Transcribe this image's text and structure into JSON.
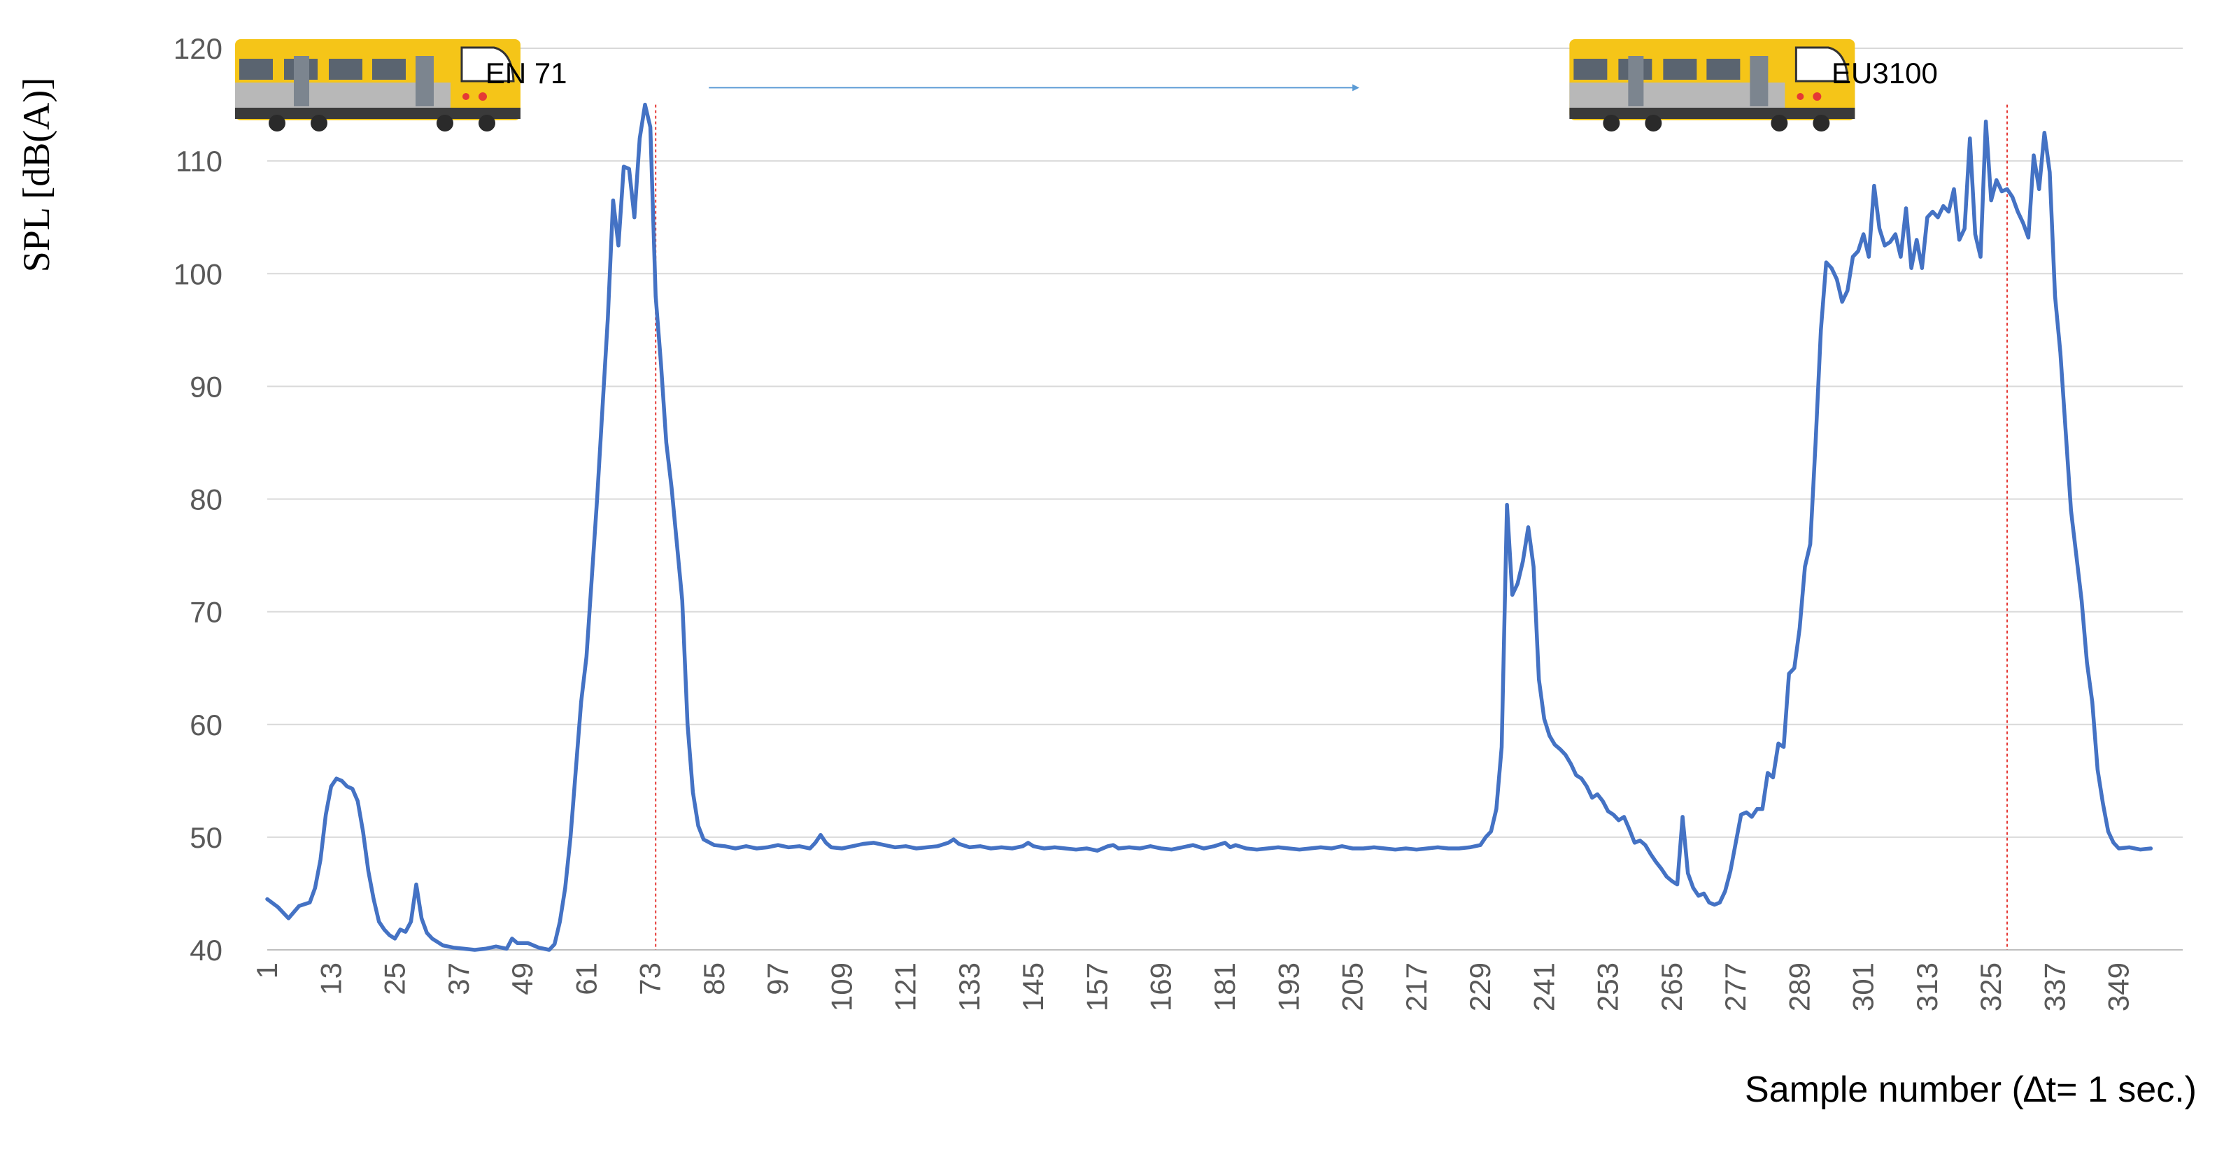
{
  "chart_data": {
    "type": "line",
    "title": "",
    "xlabel": "Sample number (∆t= 1 sec.)",
    "ylabel": "SPL [dB(A)]",
    "ylim": [
      40,
      120
    ],
    "yticks": [
      40,
      50,
      60,
      70,
      80,
      90,
      100,
      110,
      120
    ],
    "xlim": [
      1,
      361
    ],
    "xtick_labels": [
      "1",
      "13",
      "25",
      "37",
      "49",
      "61",
      "73",
      "85",
      "97",
      "109",
      "121",
      "133",
      "145",
      "157",
      "169",
      "181",
      "193",
      "205",
      "217",
      "229",
      "241",
      "253",
      "265",
      "277",
      "289",
      "301",
      "313",
      "325",
      "337",
      "349"
    ],
    "grid": "horizontal",
    "line_color": "#4472C4",
    "marker_color": "#E53935",
    "arrow_color": "#5B9BD5",
    "train_colors": {
      "body": "#F5C518",
      "band": "#B8B8B8",
      "window": "#5A6470"
    },
    "markers": [
      {
        "x": 74,
        "label": "EN 71",
        "icon": "train-icon"
      },
      {
        "x": 328,
        "label": "EU3100",
        "icon": "train-icon"
      }
    ],
    "arrow": {
      "from_x": 84,
      "to_x": 206,
      "y": 116.5
    },
    "series": [
      {
        "points": [
          [
            1,
            44.5
          ],
          [
            3,
            43.8
          ],
          [
            5,
            42.8
          ],
          [
            7,
            43.9
          ],
          [
            9,
            44.2
          ],
          [
            10,
            45.5
          ],
          [
            11,
            48
          ],
          [
            12,
            52
          ],
          [
            13,
            54.5
          ],
          [
            14,
            55.2
          ],
          [
            15,
            55
          ],
          [
            16,
            54.5
          ],
          [
            17,
            54.3
          ],
          [
            18,
            53.2
          ],
          [
            19,
            50.5
          ],
          [
            20,
            47
          ],
          [
            21,
            44.5
          ],
          [
            22,
            42.5
          ],
          [
            23,
            41.8
          ],
          [
            24,
            41.3
          ],
          [
            25,
            41
          ],
          [
            26,
            41.8
          ],
          [
            27,
            41.6
          ],
          [
            28,
            42.5
          ],
          [
            29,
            45.8
          ],
          [
            30,
            42.8
          ],
          [
            31,
            41.5
          ],
          [
            32,
            41
          ],
          [
            34,
            40.4
          ],
          [
            36,
            40.2
          ],
          [
            38,
            40.1
          ],
          [
            40,
            40.0
          ],
          [
            42,
            40.1
          ],
          [
            44,
            40.3
          ],
          [
            46,
            40.1
          ],
          [
            47,
            41
          ],
          [
            48,
            40.6
          ],
          [
            50,
            40.6
          ],
          [
            52,
            40.2
          ],
          [
            54,
            40.0
          ],
          [
            55,
            40.5
          ],
          [
            56,
            42.5
          ],
          [
            57,
            45.5
          ],
          [
            58,
            50
          ],
          [
            59,
            56
          ],
          [
            60,
            62
          ],
          [
            61,
            66
          ],
          [
            62,
            73
          ],
          [
            63,
            80
          ],
          [
            64,
            88
          ],
          [
            65,
            96
          ],
          [
            66,
            106.5
          ],
          [
            67,
            102.5
          ],
          [
            68,
            109.5
          ],
          [
            69,
            109.3
          ],
          [
            70,
            105
          ],
          [
            71,
            112
          ],
          [
            72,
            115
          ],
          [
            73,
            113
          ],
          [
            74,
            98
          ],
          [
            75,
            92
          ],
          [
            76,
            85
          ],
          [
            77,
            81
          ],
          [
            78,
            76
          ],
          [
            79,
            71
          ],
          [
            80,
            60
          ],
          [
            81,
            54
          ],
          [
            82,
            51
          ],
          [
            83,
            49.8
          ],
          [
            85,
            49.3
          ],
          [
            87,
            49.2
          ],
          [
            89,
            49
          ],
          [
            91,
            49.2
          ],
          [
            93,
            49
          ],
          [
            95,
            49.1
          ],
          [
            97,
            49.3
          ],
          [
            99,
            49.1
          ],
          [
            101,
            49.2
          ],
          [
            103,
            49
          ],
          [
            104,
            49.5
          ],
          [
            105,
            50.2
          ],
          [
            106,
            49.5
          ],
          [
            107,
            49.1
          ],
          [
            109,
            49
          ],
          [
            111,
            49.2
          ],
          [
            113,
            49.4
          ],
          [
            115,
            49.5
          ],
          [
            117,
            49.3
          ],
          [
            119,
            49.1
          ],
          [
            121,
            49.2
          ],
          [
            123,
            49
          ],
          [
            125,
            49.1
          ],
          [
            127,
            49.2
          ],
          [
            129,
            49.5
          ],
          [
            130,
            49.8
          ],
          [
            131,
            49.4
          ],
          [
            133,
            49.1
          ],
          [
            135,
            49.2
          ],
          [
            137,
            49
          ],
          [
            139,
            49.1
          ],
          [
            141,
            49
          ],
          [
            143,
            49.2
          ],
          [
            144,
            49.5
          ],
          [
            145,
            49.2
          ],
          [
            147,
            49
          ],
          [
            149,
            49.1
          ],
          [
            151,
            49
          ],
          [
            153,
            48.9
          ],
          [
            155,
            49
          ],
          [
            157,
            48.8
          ],
          [
            159,
            49.2
          ],
          [
            160,
            49.3
          ],
          [
            161,
            49
          ],
          [
            163,
            49.1
          ],
          [
            165,
            49
          ],
          [
            167,
            49.2
          ],
          [
            169,
            49
          ],
          [
            171,
            48.9
          ],
          [
            173,
            49.1
          ],
          [
            175,
            49.3
          ],
          [
            177,
            49
          ],
          [
            179,
            49.2
          ],
          [
            181,
            49.5
          ],
          [
            182,
            49.1
          ],
          [
            183,
            49.3
          ],
          [
            185,
            49
          ],
          [
            187,
            48.9
          ],
          [
            189,
            49
          ],
          [
            191,
            49.1
          ],
          [
            193,
            49
          ],
          [
            195,
            48.9
          ],
          [
            197,
            49
          ],
          [
            199,
            49.1
          ],
          [
            201,
            49
          ],
          [
            203,
            49.2
          ],
          [
            205,
            49
          ],
          [
            207,
            49
          ],
          [
            209,
            49.1
          ],
          [
            211,
            49
          ],
          [
            213,
            48.9
          ],
          [
            215,
            49
          ],
          [
            217,
            48.9
          ],
          [
            219,
            49
          ],
          [
            221,
            49.1
          ],
          [
            223,
            49
          ],
          [
            225,
            49
          ],
          [
            227,
            49.1
          ],
          [
            229,
            49.3
          ],
          [
            230,
            50
          ],
          [
            231,
            50.5
          ],
          [
            232,
            52.5
          ],
          [
            233,
            58
          ],
          [
            234,
            79.5
          ],
          [
            235,
            71.5
          ],
          [
            236,
            72.5
          ],
          [
            237,
            74.5
          ],
          [
            238,
            77.5
          ],
          [
            239,
            74
          ],
          [
            240,
            64
          ],
          [
            241,
            60.5
          ],
          [
            242,
            59
          ],
          [
            243,
            58.2
          ],
          [
            244,
            57.8
          ],
          [
            245,
            57.3
          ],
          [
            246,
            56.5
          ],
          [
            247,
            55.5
          ],
          [
            248,
            55.2
          ],
          [
            249,
            54.5
          ],
          [
            250,
            53.5
          ],
          [
            251,
            53.8
          ],
          [
            252,
            53.2
          ],
          [
            253,
            52.3
          ],
          [
            254,
            52
          ],
          [
            255,
            51.5
          ],
          [
            256,
            51.8
          ],
          [
            257,
            50.7
          ],
          [
            258,
            49.5
          ],
          [
            259,
            49.7
          ],
          [
            260,
            49.3
          ],
          [
            261,
            48.5
          ],
          [
            262,
            47.8
          ],
          [
            263,
            47.2
          ],
          [
            264,
            46.5
          ],
          [
            265,
            46.1
          ],
          [
            266,
            45.8
          ],
          [
            267,
            51.8
          ],
          [
            268,
            46.8
          ],
          [
            269,
            45.5
          ],
          [
            270,
            44.8
          ],
          [
            271,
            45
          ],
          [
            272,
            44.2
          ],
          [
            273,
            44
          ],
          [
            274,
            44.2
          ],
          [
            275,
            45.2
          ],
          [
            276,
            47
          ],
          [
            277,
            49.5
          ],
          [
            278,
            52
          ],
          [
            279,
            52.2
          ],
          [
            280,
            51.8
          ],
          [
            281,
            52.5
          ],
          [
            282,
            52.5
          ],
          [
            283,
            55.7
          ],
          [
            284,
            55.3
          ],
          [
            285,
            58.3
          ],
          [
            286,
            58
          ],
          [
            287,
            64.5
          ],
          [
            288,
            65
          ],
          [
            289,
            68.5
          ],
          [
            290,
            74
          ],
          [
            291,
            76
          ],
          [
            292,
            85
          ],
          [
            293,
            95
          ],
          [
            294,
            101
          ],
          [
            295,
            100.5
          ],
          [
            296,
            99.5
          ],
          [
            297,
            97.5
          ],
          [
            298,
            98.5
          ],
          [
            299,
            101.5
          ],
          [
            300,
            102
          ],
          [
            301,
            103.5
          ],
          [
            302,
            101.5
          ],
          [
            303,
            107.8
          ],
          [
            304,
            104
          ],
          [
            305,
            102.5
          ],
          [
            306,
            102.8
          ],
          [
            307,
            103.5
          ],
          [
            308,
            101.5
          ],
          [
            309,
            105.8
          ],
          [
            310,
            100.5
          ],
          [
            311,
            103
          ],
          [
            312,
            100.5
          ],
          [
            313,
            105
          ],
          [
            314,
            105.5
          ],
          [
            315,
            105
          ],
          [
            316,
            106
          ],
          [
            317,
            105.5
          ],
          [
            318,
            107.5
          ],
          [
            319,
            103
          ],
          [
            320,
            104
          ],
          [
            321,
            112
          ],
          [
            322,
            103.5
          ],
          [
            323,
            101.5
          ],
          [
            324,
            113.5
          ],
          [
            325,
            106.5
          ],
          [
            326,
            108.3
          ],
          [
            327,
            107.3
          ],
          [
            328,
            107.5
          ],
          [
            329,
            106.8
          ],
          [
            330,
            105.5
          ],
          [
            331,
            104.5
          ],
          [
            332,
            103.2
          ],
          [
            333,
            110.5
          ],
          [
            334,
            107.5
          ],
          [
            335,
            112.5
          ],
          [
            336,
            109
          ],
          [
            337,
            98
          ],
          [
            338,
            93
          ],
          [
            339,
            86
          ],
          [
            340,
            79
          ],
          [
            341,
            75
          ],
          [
            342,
            71
          ],
          [
            343,
            65.5
          ],
          [
            344,
            62
          ],
          [
            345,
            56
          ],
          [
            346,
            53
          ],
          [
            347,
            50.5
          ],
          [
            348,
            49.5
          ],
          [
            349,
            49
          ],
          [
            351,
            49.1
          ],
          [
            353,
            48.9
          ],
          [
            355,
            49
          ]
        ]
      }
    ]
  }
}
